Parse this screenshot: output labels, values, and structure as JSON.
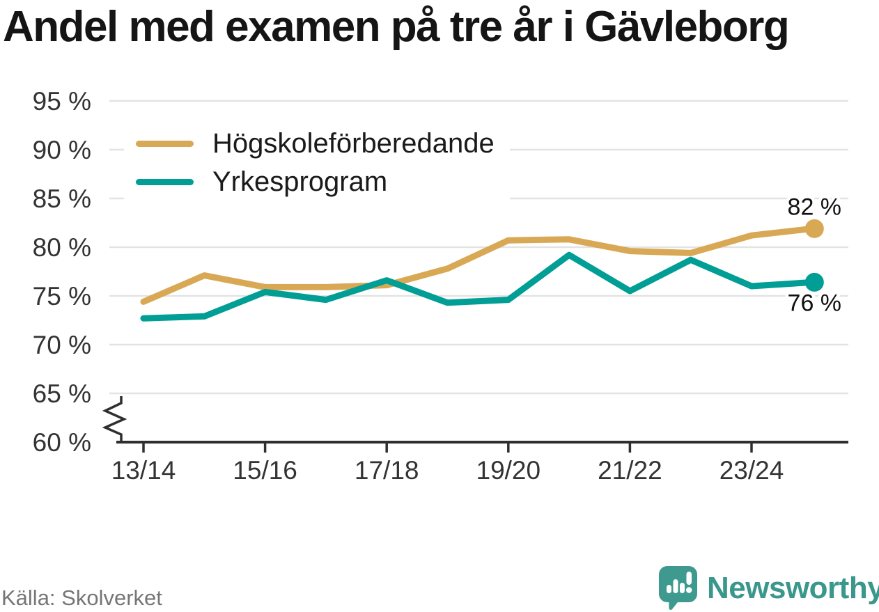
{
  "header": {
    "title": "Andel med examen på tre år i Gävleborg"
  },
  "colors": {
    "gold": "#D8A854",
    "teal": "#009E94",
    "grid": "#E3E3E3",
    "axis": "#2F2F2F",
    "tick_text": "#333333",
    "brand": "#3A978C"
  },
  "legend": {
    "items": [
      {
        "id": "hogskoleforberedande",
        "label": "Högskoleförberedande",
        "color": "#D8A854"
      },
      {
        "id": "yrkesprogram",
        "label": "Yrkesprogram",
        "color": "#009E94"
      }
    ]
  },
  "chart_data": {
    "type": "line",
    "title": "Andel med examen på tre år i Gävleborg",
    "xlabel": "",
    "ylabel": "",
    "ylim": [
      60,
      95
    ],
    "axis_break_at_60": true,
    "grid": true,
    "legend_position": "top-left",
    "categories": [
      "13/14",
      "14/15",
      "15/16",
      "16/17",
      "17/18",
      "18/19",
      "19/20",
      "20/21",
      "21/22",
      "22/23",
      "23/24",
      "24/25"
    ],
    "series": [
      {
        "id": "hogskoleforberedande",
        "name": "Högskoleförberedande",
        "color": "#D8A854",
        "values": [
          74.4,
          77.1,
          75.9,
          75.9,
          76.1,
          77.8,
          80.7,
          80.8,
          79.6,
          79.4,
          81.2,
          81.9
        ],
        "end_label": "82 %",
        "end_label_position": "above"
      },
      {
        "id": "yrkesprogram",
        "name": "Yrkesprogram",
        "color": "#009E94",
        "values": [
          72.7,
          72.9,
          75.4,
          74.6,
          76.6,
          74.3,
          74.6,
          79.2,
          75.5,
          78.7,
          76.0,
          76.4
        ],
        "end_label": "76 %",
        "end_label_position": "below"
      }
    ],
    "yticks": [
      {
        "value": 95,
        "label": "95 %"
      },
      {
        "value": 90,
        "label": "90 %"
      },
      {
        "value": 85,
        "label": "85 %"
      },
      {
        "value": 80,
        "label": "80 %"
      },
      {
        "value": 75,
        "label": "75 %"
      },
      {
        "value": 70,
        "label": "70 %"
      },
      {
        "value": 65,
        "label": "65 %"
      },
      {
        "value": 60,
        "label": "60 %"
      }
    ],
    "xticks": [
      {
        "index": 0,
        "label": "13/14"
      },
      {
        "index": 2,
        "label": "15/16"
      },
      {
        "index": 4,
        "label": "17/18"
      },
      {
        "index": 6,
        "label": "19/20"
      },
      {
        "index": 8,
        "label": "21/22"
      },
      {
        "index": 10,
        "label": "23/24"
      }
    ]
  },
  "footer": {
    "source": "Källa: Skolverket",
    "brand": "Newsworthy"
  }
}
